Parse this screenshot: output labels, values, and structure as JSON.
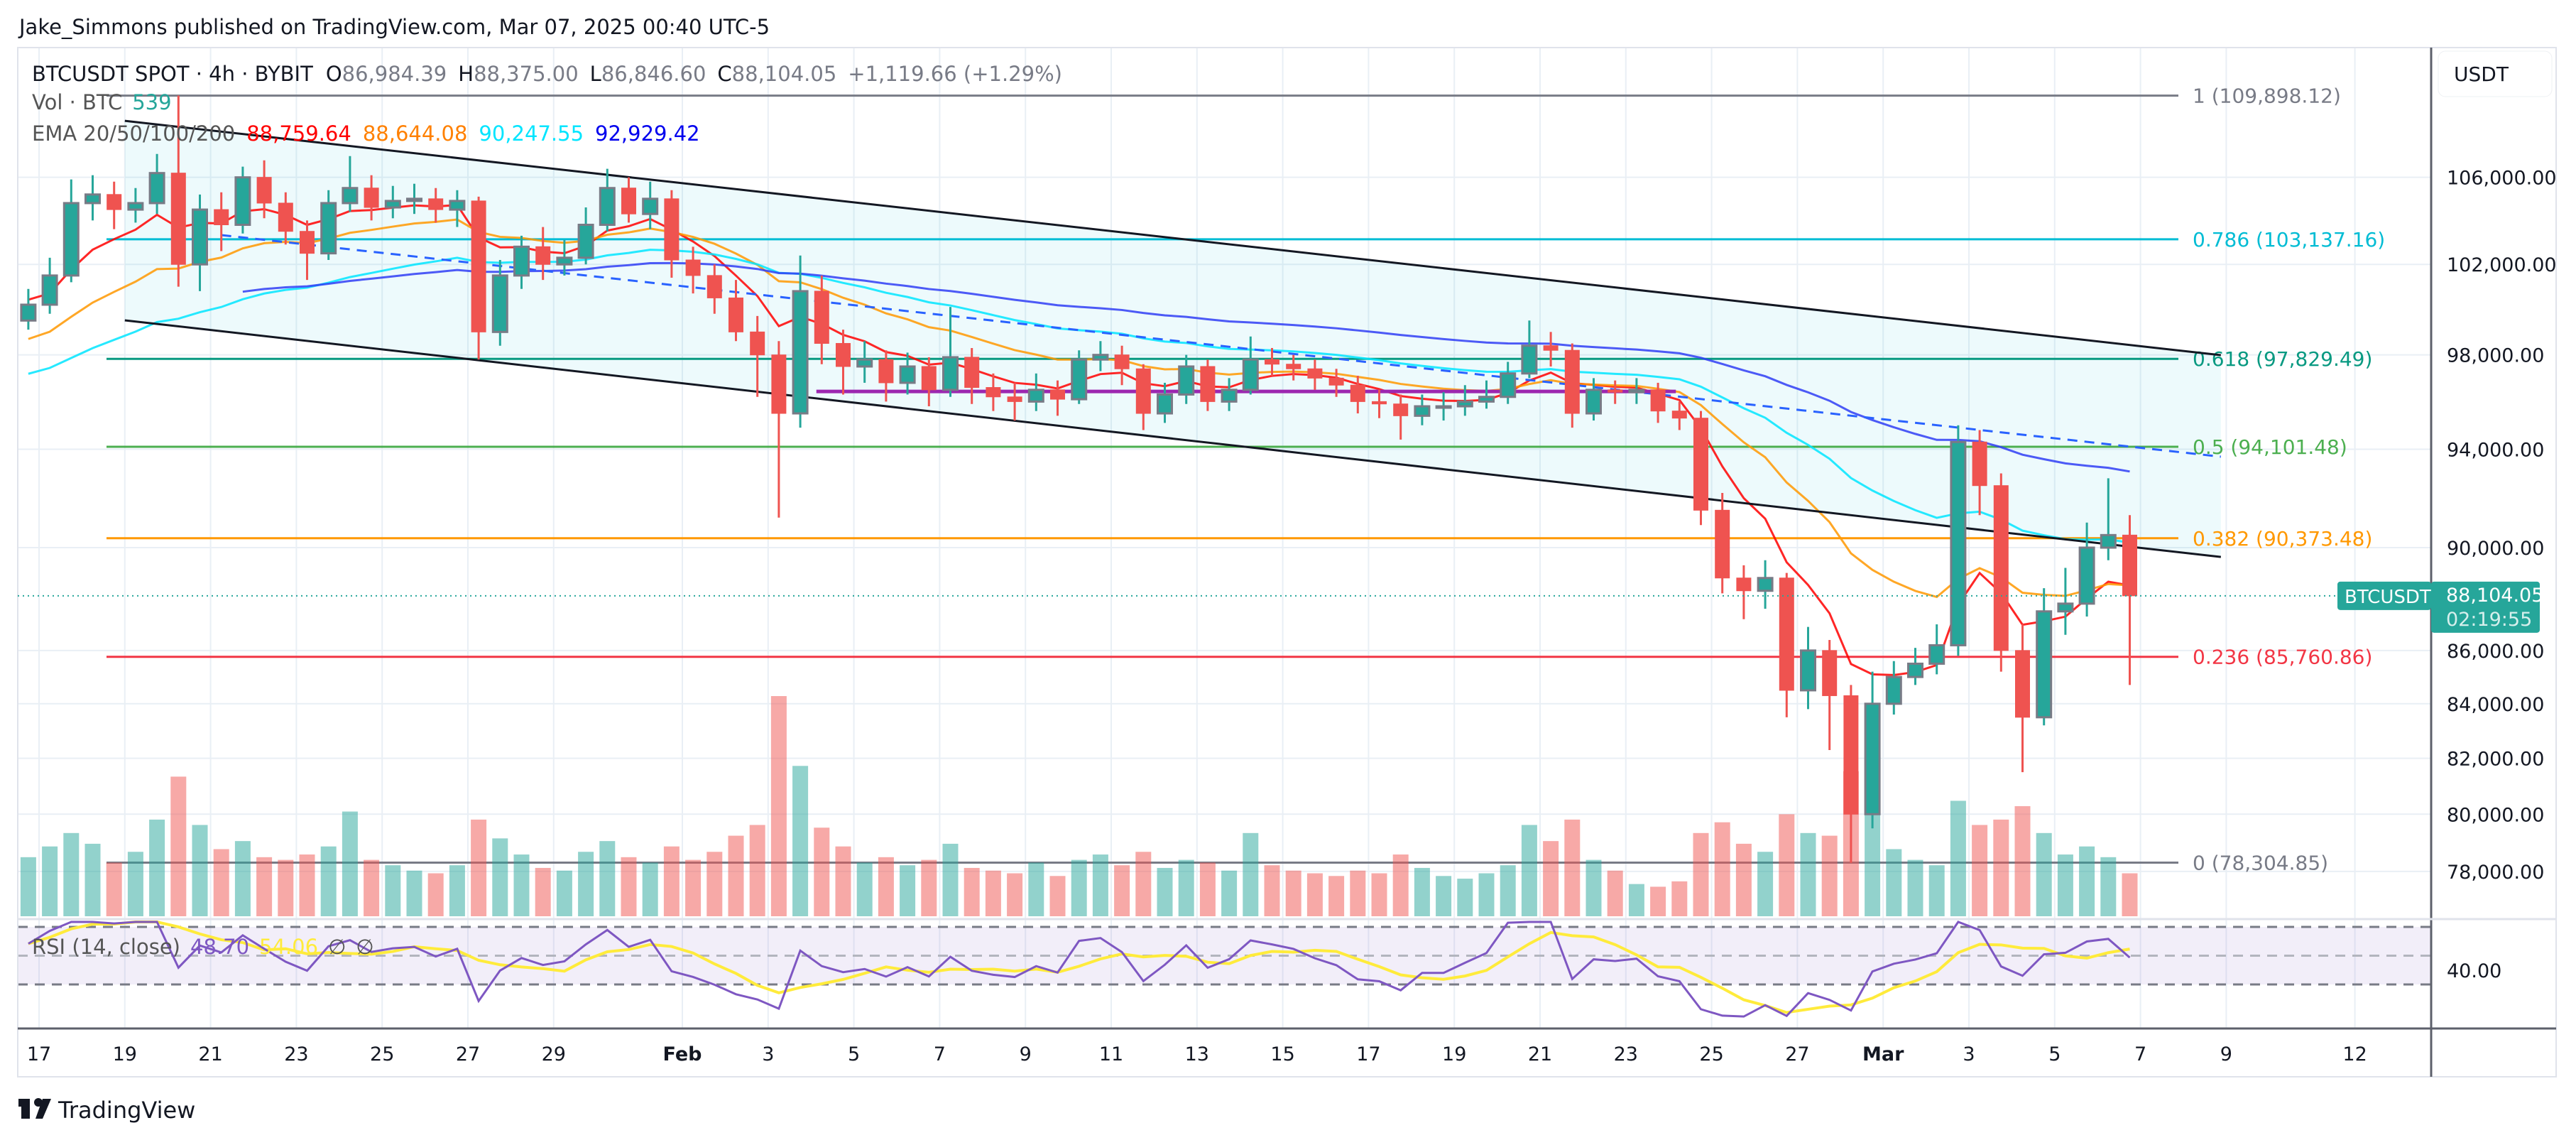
{
  "header": {
    "published": "Jake_Simmons published on TradingView.com, Mar 07, 2025 00:40 UTC-5"
  },
  "legend": {
    "symbol": "BTCUSDT SPOT · 4h · BYBIT",
    "o_label": "O",
    "o": "86,984.39",
    "h_label": "H",
    "h": "88,375.00",
    "l_label": "L",
    "l": "86,846.60",
    "c_label": "C",
    "c": "88,104.05",
    "change": "+1,119.66 (+1.29%)",
    "vol_label": "Vol · BTC",
    "vol_value": "539",
    "ema_label": "EMA 20/50/100/200",
    "ema_values": [
      "88,759.64",
      "88,644.08",
      "90,247.55",
      "92,929.42"
    ],
    "rsi_label": "RSI (14, close)",
    "rsi_value": "48.70",
    "rsi_ma": "54.06",
    "rsi_na1": "∅",
    "rsi_na2": "∅"
  },
  "price_axis": {
    "currency": "USDT",
    "last_symbol": "BTCUSDT",
    "last_price": "88,104.05",
    "countdown": "02:19:55",
    "rsi_tick": "40.00"
  },
  "footer": {
    "brand": "TradingView"
  },
  "colors": {
    "up": "#26a69a",
    "down": "#ef5350",
    "up_border": "#787b86",
    "ema20": "#ff0000",
    "ema50": "#ff9800",
    "ema100": "#00e5ff",
    "ema200": "#2f3df5",
    "rsi": "#7e57c2",
    "rsi_ma": "#ffeb3b",
    "grid": "#e9eff5"
  },
  "chart_data": {
    "type": "candlestick",
    "symbol": "BTCUSDT",
    "yscale": "log",
    "grid": true,
    "candle_start": "2025-01-16T12:00",
    "candle_interval_hours": 12,
    "ylim": [
      76500,
      111500
    ],
    "y_ticks": [
      "106,000.00",
      "102,000.00",
      "98,000.00",
      "94,000.00",
      "90,000.00",
      "86,000.00",
      "84,000.00",
      "82,000.00",
      "80,000.00",
      "78,000.00"
    ],
    "x_ticks": [
      {
        "label": "17",
        "date": "2025-01-17"
      },
      {
        "label": "19",
        "date": "2025-01-19"
      },
      {
        "label": "21",
        "date": "2025-01-21"
      },
      {
        "label": "23",
        "date": "2025-01-23"
      },
      {
        "label": "25",
        "date": "2025-01-25"
      },
      {
        "label": "27",
        "date": "2025-01-27"
      },
      {
        "label": "29",
        "date": "2025-01-29"
      },
      {
        "label": "Feb",
        "date": "2025-02-01"
      },
      {
        "label": "3",
        "date": "2025-02-03"
      },
      {
        "label": "5",
        "date": "2025-02-05"
      },
      {
        "label": "7",
        "date": "2025-02-07"
      },
      {
        "label": "9",
        "date": "2025-02-09"
      },
      {
        "label": "11",
        "date": "2025-02-11"
      },
      {
        "label": "13",
        "date": "2025-02-13"
      },
      {
        "label": "15",
        "date": "2025-02-15"
      },
      {
        "label": "17",
        "date": "2025-02-17"
      },
      {
        "label": "19",
        "date": "2025-02-19"
      },
      {
        "label": "21",
        "date": "2025-02-21"
      },
      {
        "label": "23",
        "date": "2025-02-23"
      },
      {
        "label": "25",
        "date": "2025-02-25"
      },
      {
        "label": "27",
        "date": "2025-02-27"
      },
      {
        "label": "Mar",
        "date": "2025-03-01"
      },
      {
        "label": "3",
        "date": "2025-03-03"
      },
      {
        "label": "5",
        "date": "2025-03-05"
      },
      {
        "label": "7",
        "date": "2025-03-07"
      },
      {
        "label": "9",
        "date": "2025-03-09"
      },
      {
        "label": "12",
        "date": "2025-03-12"
      }
    ],
    "first_open": 99500,
    "close": [
      100200,
      101500,
      104800,
      105200,
      104500,
      104800,
      106200,
      102000,
      104500,
      103800,
      106000,
      104800,
      103500,
      102500,
      104800,
      105500,
      104600,
      104900,
      105000,
      104500,
      104900,
      99000,
      101500,
      102800,
      102000,
      102300,
      103800,
      105500,
      104300,
      105000,
      102200,
      101500,
      100500,
      99000,
      98000,
      95500,
      100800,
      98500,
      97500,
      97800,
      96800,
      97500,
      96500,
      97900,
      96600,
      96200,
      96000,
      96500,
      96100,
      97800,
      98000,
      97400,
      95500,
      96300,
      97500,
      96000,
      96500,
      97800,
      97600,
      97400,
      97000,
      96700,
      96000,
      95900,
      95400,
      95800,
      95800,
      96000,
      96200,
      97200,
      98400,
      98200,
      95500,
      96500,
      96400,
      96500,
      95600,
      95300,
      91500,
      88800,
      88300,
      88800,
      84500,
      86000,
      84300,
      80000,
      84000,
      85000,
      85500,
      86200,
      94300,
      92500,
      86000,
      83500,
      87500,
      87800,
      90000,
      90500,
      88104.05
    ],
    "high": [
      100900,
      102300,
      105900,
      106100,
      105800,
      105500,
      107100,
      109900,
      105200,
      105300,
      106500,
      106800,
      105300,
      104000,
      105400,
      107000,
      106100,
      105600,
      105700,
      105500,
      105400,
      105100,
      102200,
      103300,
      103700,
      103100,
      104600,
      106400,
      106000,
      105800,
      105400,
      102800,
      102000,
      101300,
      99700,
      98600,
      102400,
      101500,
      99100,
      98600,
      98200,
      98100,
      97900,
      100100,
      98300,
      97200,
      96800,
      97200,
      96900,
      98200,
      98600,
      98400,
      97600,
      96800,
      98000,
      97800,
      97000,
      98800,
      98300,
      98000,
      97800,
      97400,
      97100,
      96500,
      96300,
      96300,
      96400,
      96700,
      96900,
      97700,
      99500,
      99000,
      98500,
      97000,
      96900,
      97000,
      96800,
      96000,
      95600,
      92200,
      89300,
      89500,
      89000,
      86900,
      86400,
      84700,
      85200,
      85600,
      86100,
      87000,
      95000,
      94800,
      93000,
      87000,
      88400,
      89200,
      91000,
      92800,
      91300
    ],
    "low": [
      99100,
      99800,
      101200,
      104000,
      103600,
      103900,
      104300,
      101000,
      100800,
      102600,
      103400,
      104100,
      102900,
      101300,
      102200,
      104400,
      104000,
      104100,
      104300,
      103900,
      103700,
      97800,
      98400,
      100900,
      101300,
      101500,
      102000,
      103500,
      103900,
      103600,
      101400,
      100700,
      99800,
      98600,
      96200,
      91200,
      94900,
      97600,
      96300,
      96800,
      96000,
      96300,
      95800,
      96200,
      95900,
      95600,
      95200,
      95600,
      95400,
      95900,
      97300,
      96700,
      94800,
      95100,
      95900,
      95600,
      95600,
      96300,
      97100,
      96900,
      96500,
      96200,
      95500,
      95300,
      94400,
      95000,
      95200,
      95400,
      95700,
      95900,
      97000,
      97500,
      94900,
      95200,
      95900,
      95900,
      95100,
      94800,
      90900,
      88200,
      87200,
      87600,
      83500,
      83800,
      82300,
      78300,
      79500,
      83600,
      84700,
      85100,
      85800,
      91300,
      85200,
      81500,
      83200,
      86600,
      87300,
      89500,
      84700
    ],
    "volume": [
      2200,
      2600,
      3100,
      2700,
      2000,
      2400,
      3600,
      5200,
      3400,
      2500,
      2800,
      2200,
      2100,
      2300,
      2600,
      3900,
      2100,
      1900,
      1700,
      1600,
      1900,
      3600,
      2900,
      2300,
      1800,
      1700,
      2400,
      2800,
      2200,
      2000,
      2600,
      2100,
      2400,
      3000,
      3400,
      8200,
      5600,
      3300,
      2600,
      2000,
      2200,
      1900,
      2100,
      2700,
      1800,
      1700,
      1600,
      2000,
      1500,
      2100,
      2300,
      1900,
      2400,
      1800,
      2100,
      2000,
      1700,
      3100,
      1900,
      1700,
      1600,
      1500,
      1700,
      1600,
      2300,
      1800,
      1500,
      1400,
      1600,
      1900,
      3400,
      2800,
      3600,
      2100,
      1700,
      1200,
      1100,
      1300,
      3100,
      3500,
      2700,
      2400,
      3800,
      3100,
      3000,
      5400,
      3900,
      2500,
      2100,
      1900,
      4300,
      3400,
      3600,
      4100,
      3100,
      2300,
      2600,
      2200,
      1600
    ],
    "fib_levels": [
      {
        "level": 1,
        "price": 109898.12,
        "label": "1 (109,898.12)",
        "color": "#787b86"
      },
      {
        "level": 0.786,
        "price": 103137.16,
        "label": "0.786 (103,137.16)",
        "color": "#00bcd4"
      },
      {
        "level": 0.618,
        "price": 97829.49,
        "label": "0.618 (97,829.49)",
        "color": "#089981"
      },
      {
        "level": 0.5,
        "price": 94101.48,
        "label": "0.5 (94,101.48)",
        "color": "#4caf50"
      },
      {
        "level": 0.382,
        "price": 90373.48,
        "label": "0.382 (90,373.48)",
        "color": "#ff9800"
      },
      {
        "level": 0.236,
        "price": 85760.86,
        "label": "0.236 (85,760.86)",
        "color": "#f23645"
      },
      {
        "level": 0,
        "price": 78304.85,
        "label": "0 (78,304.85)",
        "color": "#787b86"
      }
    ],
    "drawings": {
      "channel_upper": {
        "from": {
          "date": "2025-01-19T00:00",
          "price": 108680
        },
        "to": {
          "date": "2025-03-08T21:00",
          "price": 97990
        },
        "color": "#131722"
      },
      "channel_lower": {
        "from": {
          "date": "2025-01-19T00:00",
          "price": 99510
        },
        "to": {
          "date": "2025-03-08T21:00",
          "price": 89630
        },
        "color": "#131722"
      },
      "channel_mid_dashed": {
        "from": {
          "date": "2025-01-21T06:00",
          "price": 103330
        },
        "to": {
          "date": "2025-03-08T21:00",
          "price": 93690
        },
        "color": "#2962ff"
      },
      "horizontal_segment": {
        "from": {
          "date": "2025-02-04T03:00",
          "price": 96430
        },
        "to": {
          "date": "2025-02-24T04:00",
          "price": 96430
        },
        "color": "#9c27b0"
      }
    },
    "rsi": {
      "period": 14,
      "upper": 70,
      "middle": 50,
      "lower": 30
    }
  }
}
